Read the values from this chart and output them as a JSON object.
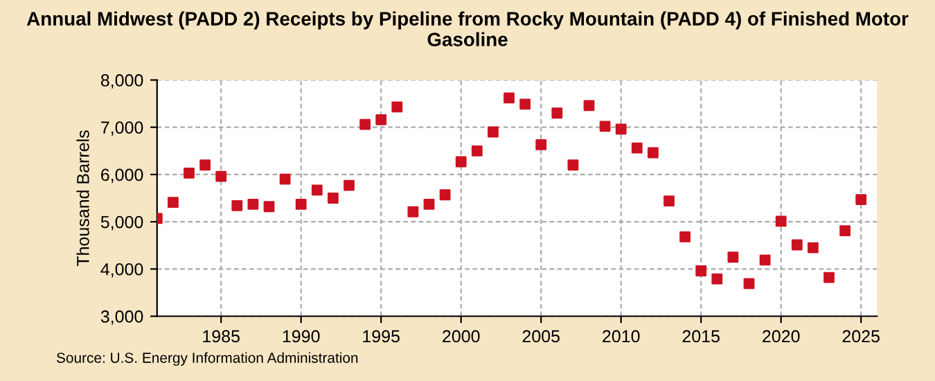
{
  "chart_data": {
    "type": "scatter",
    "title": "Annual Midwest (PADD 2) Receipts by Pipeline from Rocky Mountain (PADD 4) of Finished Motor Gasoline",
    "ylabel": "Thousand Barrels",
    "annotations": [
      "Source: U.S. Energy Information Administration"
    ],
    "x": [
      1981,
      1982,
      1983,
      1984,
      1985,
      1986,
      1987,
      1988,
      1989,
      1990,
      1991,
      1992,
      1993,
      1994,
      1995,
      1996,
      1997,
      1998,
      1999,
      2000,
      2001,
      2002,
      2003,
      2004,
      2005,
      2006,
      2007,
      2008,
      2009,
      2010,
      2011,
      2012,
      2013,
      2014,
      2015,
      2016,
      2017,
      2018,
      2019,
      2020,
      2021,
      2022,
      2023,
      2024,
      2025
    ],
    "series": [
      {
        "color": "#cc1122",
        "values": [
          5070,
          5410,
          6030,
          6200,
          5960,
          5340,
          5370,
          5320,
          5900,
          5370,
          5670,
          5500,
          5770,
          7060,
          7160,
          7430,
          5210,
          5370,
          5570,
          6270,
          6500,
          6900,
          7620,
          7490,
          6630,
          7300,
          6200,
          7460,
          7020,
          6960,
          6560,
          6460,
          5440,
          4680,
          3960,
          3790,
          4250,
          3690,
          4190,
          5010,
          4510,
          4450,
          3820,
          4810,
          5470
        ]
      }
    ],
    "xlim": [
      1981,
      2026
    ],
    "xticks": [
      1985,
      1990,
      1995,
      2000,
      2005,
      2010,
      2015,
      2020,
      2025
    ],
    "ylim": [
      3000,
      8000
    ],
    "yticks": [
      {
        "value": 3000,
        "label": "3,000"
      },
      {
        "value": 4000,
        "label": "4,000"
      },
      {
        "value": 5000,
        "label": "5,000"
      },
      {
        "value": 6000,
        "label": "6,000"
      },
      {
        "value": 7000,
        "label": "7,000"
      },
      {
        "value": 8000,
        "label": "8,000"
      }
    ],
    "grid": true,
    "marker": "square",
    "legend": false
  }
}
